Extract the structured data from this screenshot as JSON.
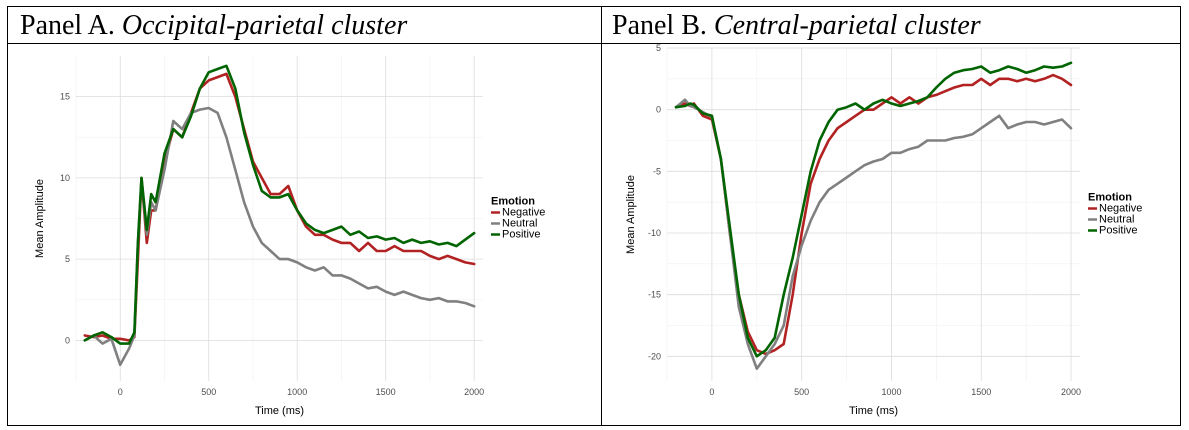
{
  "panels": [
    {
      "prefix": "Panel A. ",
      "name": "Occipital-parietal cluster"
    },
    {
      "prefix": "Panel B. ",
      "name": "Central-parietal cluster"
    }
  ],
  "colors": {
    "Negative": "#b22222",
    "Neutral": "#808080",
    "Positive": "#006400"
  },
  "chart_data": [
    {
      "type": "line",
      "title": "Panel A. Occipital-parietal cluster",
      "xlabel": "Time (ms)",
      "ylabel": "Mean Amplitude",
      "xlim": [
        -250,
        2050
      ],
      "ylim": [
        -2.5,
        17.5
      ],
      "xticks": [
        0,
        500,
        1000,
        1500,
        2000
      ],
      "yticks": [
        0,
        5,
        10,
        15
      ],
      "grid": true,
      "legend": {
        "title": "Emotion",
        "placement": "right"
      },
      "series": [
        {
          "name": "Negative",
          "x": [
            -200,
            -150,
            -100,
            -50,
            0,
            50,
            80,
            100,
            120,
            150,
            175,
            200,
            250,
            300,
            350,
            400,
            450,
            500,
            550,
            600,
            650,
            700,
            750,
            800,
            850,
            900,
            950,
            1000,
            1050,
            1100,
            1150,
            1200,
            1250,
            1300,
            1350,
            1400,
            1450,
            1500,
            1550,
            1600,
            1650,
            1700,
            1750,
            1800,
            1850,
            1900,
            1950,
            2000
          ],
          "values": [
            0.3,
            0.2,
            0.3,
            0.1,
            0.1,
            0,
            0.2,
            5,
            10,
            6,
            8,
            8,
            11,
            13,
            12.5,
            14,
            15.5,
            16,
            16.2,
            16.4,
            15,
            13,
            11,
            10,
            9,
            9,
            9.5,
            8,
            7,
            6.5,
            6.5,
            6.2,
            6,
            6,
            5.5,
            6,
            5.5,
            5.5,
            5.8,
            5.5,
            5.5,
            5.5,
            5.2,
            5,
            5.2,
            5,
            4.8,
            4.7
          ]
        },
        {
          "name": "Neutral",
          "x": [
            -200,
            -150,
            -100,
            -50,
            0,
            50,
            80,
            100,
            120,
            150,
            175,
            200,
            250,
            300,
            350,
            400,
            450,
            500,
            550,
            600,
            650,
            700,
            750,
            800,
            850,
            900,
            950,
            1000,
            1050,
            1100,
            1150,
            1200,
            1250,
            1300,
            1350,
            1400,
            1450,
            1500,
            1550,
            1600,
            1650,
            1700,
            1750,
            1800,
            1850,
            1900,
            1950,
            2000
          ],
          "values": [
            0,
            0.3,
            -0.2,
            0.1,
            -1.5,
            -0.5,
            0.3,
            6,
            10,
            6.5,
            8.5,
            8,
            10.5,
            13.5,
            13,
            14,
            14.2,
            14.3,
            14,
            12.5,
            10.5,
            8.5,
            7,
            6,
            5.5,
            5,
            5,
            4.8,
            4.5,
            4.3,
            4.5,
            4,
            4,
            3.8,
            3.5,
            3.2,
            3.3,
            3,
            2.8,
            3,
            2.8,
            2.6,
            2.5,
            2.6,
            2.4,
            2.4,
            2.3,
            2.1
          ]
        },
        {
          "name": "Positive",
          "x": [
            -200,
            -150,
            -100,
            -50,
            0,
            50,
            80,
            100,
            120,
            150,
            175,
            200,
            250,
            300,
            350,
            400,
            450,
            500,
            550,
            600,
            650,
            700,
            750,
            800,
            850,
            900,
            950,
            1000,
            1050,
            1100,
            1150,
            1200,
            1250,
            1300,
            1350,
            1400,
            1450,
            1500,
            1550,
            1600,
            1650,
            1700,
            1750,
            1800,
            1850,
            1900,
            1950,
            2000
          ],
          "values": [
            0,
            0.3,
            0.5,
            0.2,
            -0.2,
            -0.2,
            0.5,
            6,
            10,
            6.8,
            9,
            8.5,
            11.5,
            13,
            12.5,
            13.8,
            15.5,
            16.5,
            16.7,
            16.9,
            15.5,
            12.8,
            10.8,
            9.2,
            8.8,
            8.8,
            9,
            8,
            7.2,
            6.8,
            6.6,
            6.8,
            7,
            6.5,
            6.7,
            6.3,
            6.4,
            6.2,
            6.3,
            6,
            6.2,
            6,
            6.1,
            5.9,
            6,
            5.8,
            6.2,
            6.6
          ]
        }
      ]
    },
    {
      "type": "line",
      "title": "Panel B. Central-parietal cluster",
      "xlabel": "Time (ms)",
      "ylabel": "Mean Amplitude",
      "xlim": [
        -250,
        2050
      ],
      "ylim": [
        -22,
        5
      ],
      "xticks": [
        0,
        500,
        1000,
        1500,
        2000
      ],
      "yticks": [
        5,
        0,
        -5,
        -10,
        -15,
        -20
      ],
      "grid": true,
      "legend": {
        "title": "Emotion",
        "placement": "right"
      },
      "series": [
        {
          "name": "Negative",
          "x": [
            -200,
            -150,
            -120,
            -100,
            -50,
            0,
            50,
            100,
            150,
            200,
            250,
            300,
            350,
            400,
            450,
            500,
            550,
            600,
            650,
            700,
            750,
            800,
            850,
            900,
            950,
            1000,
            1050,
            1100,
            1150,
            1200,
            1250,
            1300,
            1350,
            1400,
            1450,
            1500,
            1550,
            1600,
            1650,
            1700,
            1750,
            1800,
            1850,
            1900,
            1950,
            2000
          ],
          "values": [
            0.2,
            0.5,
            0.3,
            0.5,
            -0.5,
            -0.8,
            -4,
            -10,
            -15,
            -18,
            -19.5,
            -19.8,
            -19.5,
            -19,
            -15,
            -10,
            -6,
            -4,
            -2.5,
            -1.5,
            -1,
            -0.5,
            0,
            0,
            0.5,
            1,
            0.5,
            1,
            0.5,
            1,
            1.2,
            1.5,
            1.8,
            2,
            2,
            2.5,
            2,
            2.5,
            2.5,
            2.3,
            2.5,
            2.3,
            2.5,
            2.8,
            2.5,
            2
          ]
        },
        {
          "name": "Neutral",
          "x": [
            -200,
            -150,
            -120,
            -100,
            -50,
            0,
            50,
            100,
            150,
            200,
            250,
            300,
            350,
            400,
            450,
            500,
            550,
            600,
            650,
            700,
            750,
            800,
            850,
            900,
            950,
            1000,
            1050,
            1100,
            1150,
            1200,
            1250,
            1300,
            1350,
            1400,
            1450,
            1500,
            1550,
            1600,
            1650,
            1700,
            1750,
            1800,
            1850,
            1900,
            1950,
            2000
          ],
          "values": [
            0.2,
            0.8,
            0.3,
            0.2,
            -0.2,
            -0.6,
            -4,
            -10,
            -16,
            -19,
            -21,
            -20,
            -19,
            -17.5,
            -13.5,
            -11,
            -9,
            -7.5,
            -6.5,
            -6,
            -5.5,
            -5,
            -4.5,
            -4.2,
            -4,
            -3.5,
            -3.5,
            -3.2,
            -3,
            -2.5,
            -2.5,
            -2.5,
            -2.3,
            -2.2,
            -2,
            -1.5,
            -1,
            -0.5,
            -1.5,
            -1.2,
            -1,
            -1,
            -1.2,
            -1,
            -0.8,
            -1.5
          ]
        },
        {
          "name": "Positive",
          "x": [
            -200,
            -150,
            -120,
            -100,
            -50,
            0,
            50,
            100,
            150,
            200,
            250,
            300,
            350,
            400,
            450,
            500,
            550,
            600,
            650,
            700,
            750,
            800,
            850,
            900,
            950,
            1000,
            1050,
            1100,
            1150,
            1200,
            1250,
            1300,
            1350,
            1400,
            1450,
            1500,
            1550,
            1600,
            1650,
            1700,
            1750,
            1800,
            1850,
            1900,
            1950,
            2000
          ],
          "values": [
            0.2,
            0.3,
            0.5,
            0.4,
            -0.3,
            -0.5,
            -4,
            -9.5,
            -15,
            -18.5,
            -20,
            -19.5,
            -18.5,
            -15,
            -12,
            -8.5,
            -5,
            -2.5,
            -1,
            0,
            0.2,
            0.5,
            0,
            0.5,
            0.8,
            0.5,
            0.3,
            0.5,
            0.7,
            1,
            1.8,
            2.5,
            3,
            3.2,
            3.3,
            3.5,
            3,
            3.2,
            3.5,
            3.3,
            3,
            3.2,
            3.5,
            3.4,
            3.5,
            3.8
          ]
        }
      ]
    }
  ]
}
